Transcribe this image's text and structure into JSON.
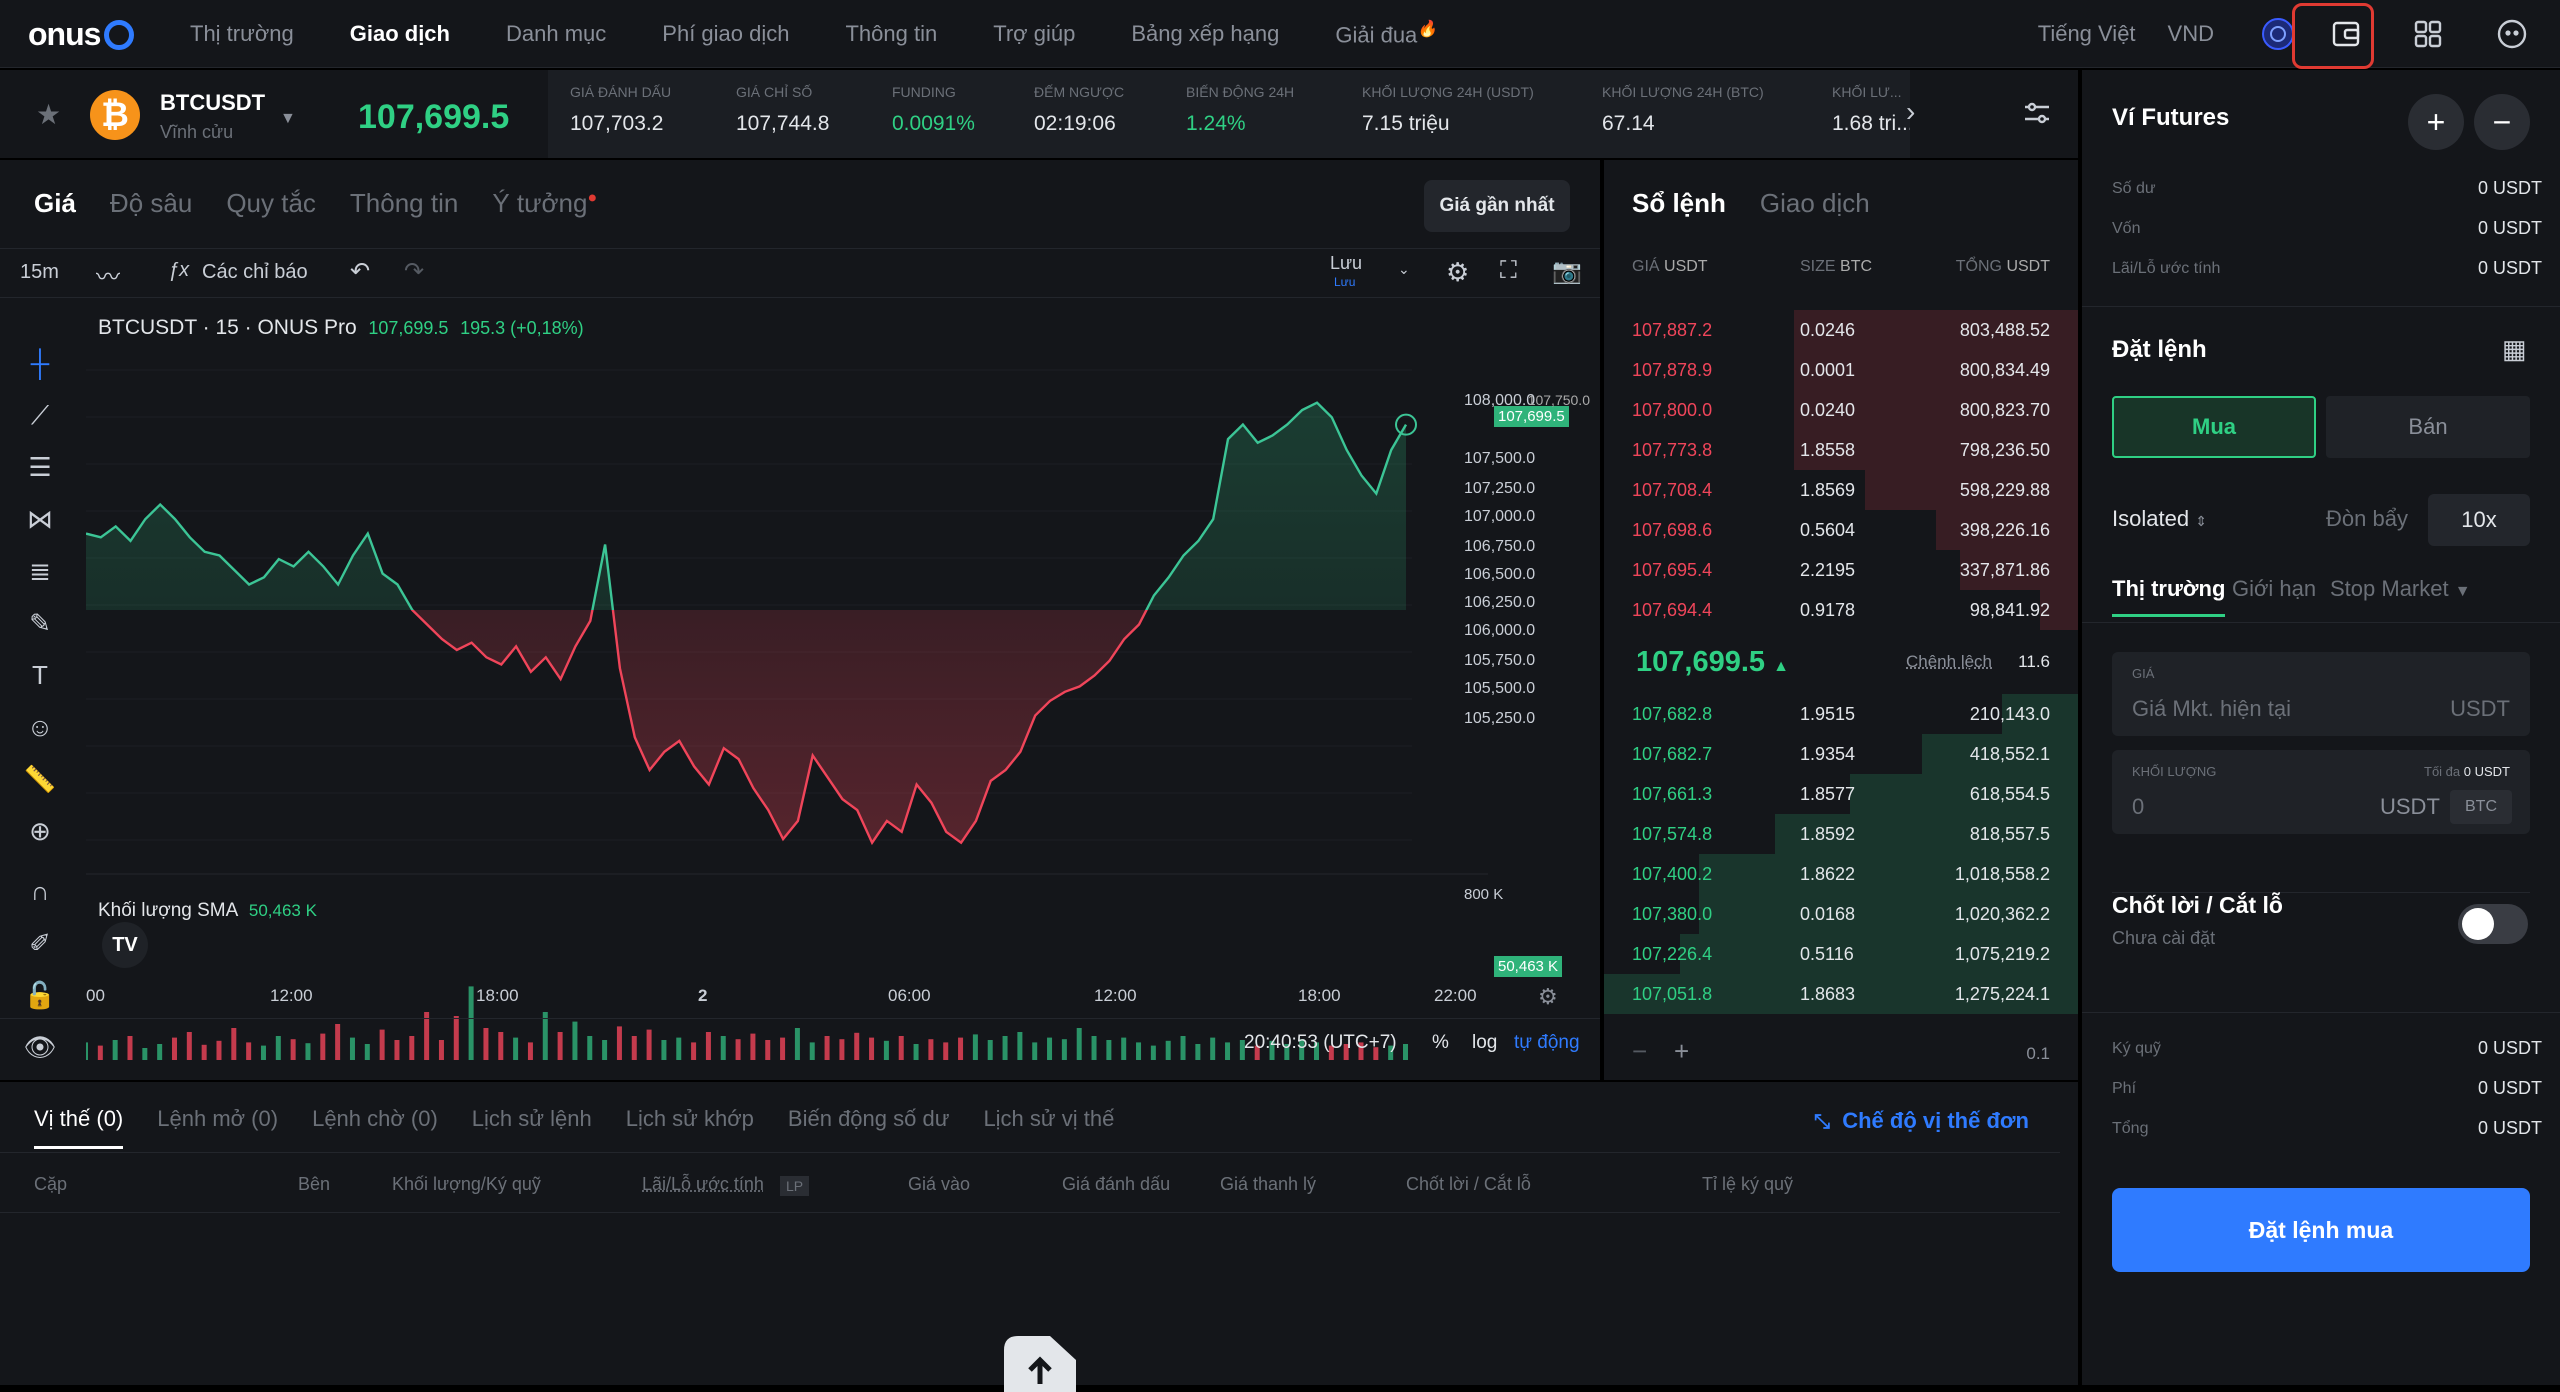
{
  "brand": {
    "name": "onus"
  },
  "nav": {
    "items": [
      "Thị trường",
      "Giao dịch",
      "Danh mục",
      "Phí giao dịch",
      "Thông tin",
      "Trợ giúp",
      "Bảng xếp hạng",
      "Giải đua"
    ],
    "active": "Giao dịch"
  },
  "topright": {
    "language": "Tiếng Việt",
    "currency": "VND"
  },
  "ticker": {
    "symbol": "BTCUSDT",
    "subtitle": "Vĩnh cửu",
    "price": "107,699.5",
    "stats": [
      {
        "label": "GIÁ ĐÁNH DẤU",
        "value": "107,703.2"
      },
      {
        "label": "GIÁ CHỈ SỐ",
        "value": "107,744.8"
      },
      {
        "label": "FUNDING",
        "value": "0.0091%"
      },
      {
        "label": "ĐẾM NGƯỢC",
        "value": "02:19:06"
      },
      {
        "label": "BIẾN ĐỘNG 24H",
        "value": "1.24%"
      },
      {
        "label": "KHỐI LƯỢNG 24H (USDT)",
        "value": "7.15 triệu"
      },
      {
        "label": "KHỐI LƯỢNG 24H (BTC)",
        "value": "67.14"
      },
      {
        "label": "KHỐI LƯ...",
        "value": "1.68 tri..."
      }
    ]
  },
  "chart_tabs": [
    "Giá",
    "Độ sâu",
    "Quy tắc",
    "Thông tin",
    "Ý tưởng"
  ],
  "nearest_btn": "Giá gần nhất",
  "toolbar": {
    "interval": "15m",
    "indicators": "Các chỉ báo",
    "save": "Lưu",
    "save_sub": "Lưu"
  },
  "chart": {
    "title": "BTCUSDT · 15 · ONUS Pro",
    "last": "107,699.5",
    "change": "195.3 (+0,18%)",
    "volume_label": "Khối lượng SMA",
    "volume_value": "50,463 K",
    "volume_tag": "50,463 K",
    "volume_axis": "800 K",
    "price_tag": "107,699.5",
    "price_axis_partial": "107,750.0",
    "y_ticks": [
      "108,000.0",
      "107,500.0",
      "107,250.0",
      "107,000.0",
      "106,750.0",
      "106,500.0",
      "106,250.0",
      "106,000.0",
      "105,750.0",
      "105,500.0",
      "105,250.0"
    ],
    "x_ticks": [
      "00",
      "12:00",
      "18:00",
      "2",
      "06:00",
      "12:00",
      "18:00",
      "22:00"
    ],
    "time": "20:40:53 (UTC+7)",
    "pct": "%",
    "log": "log",
    "auto": "tự động"
  },
  "chart_data": {
    "type": "area",
    "y_range": [
      105250,
      108000
    ],
    "baseline": 106680,
    "values": [
      107100,
      107080,
      107140,
      107060,
      107180,
      107260,
      107180,
      107080,
      107000,
      106980,
      106900,
      106820,
      106860,
      106960,
      106920,
      107000,
      106920,
      106820,
      106980,
      107100,
      106880,
      106820,
      106680,
      106600,
      106520,
      106460,
      106500,
      106420,
      106380,
      106480,
      106340,
      106420,
      106300,
      106480,
      106620,
      107040,
      106360,
      105980,
      105800,
      105900,
      105960,
      105820,
      105720,
      105920,
      105860,
      105700,
      105580,
      105420,
      105520,
      105880,
      105760,
      105640,
      105580,
      105400,
      105520,
      105460,
      105720,
      105620,
      105460,
      105400,
      105520,
      105740,
      105800,
      105900,
      106100,
      106180,
      106230,
      106260,
      106320,
      106400,
      106520,
      106600,
      106760,
      106860,
      106980,
      107060,
      107180,
      107620,
      107700,
      107600,
      107640,
      107700,
      107780,
      107820,
      107740,
      107560,
      107420,
      107320,
      107560,
      107699.5
    ],
    "volumes": [
      22,
      18,
      25,
      30,
      15,
      20,
      28,
      35,
      19,
      24,
      40,
      22,
      18,
      30,
      26,
      21,
      33,
      45,
      28,
      20,
      38,
      25,
      30,
      60,
      25,
      55,
      92,
      40,
      35,
      28,
      22,
      60,
      35,
      48,
      30,
      25,
      42,
      30,
      38,
      25,
      28,
      22,
      35,
      30,
      26,
      33,
      25,
      28,
      40,
      22,
      30,
      26,
      34,
      28,
      24,
      30,
      20,
      26,
      22,
      28,
      32,
      25,
      30,
      35,
      22,
      28,
      26,
      40,
      30,
      25,
      28,
      22,
      18,
      24,
      30,
      20,
      28,
      22,
      25,
      18,
      24,
      20,
      26,
      22,
      18,
      20,
      22,
      16,
      18,
      20
    ]
  },
  "orderbook": {
    "tabs": [
      "Sổ lệnh",
      "Giao dịch"
    ],
    "col_price": "GIÁ",
    "col_price_unit": "USDT",
    "col_size": "SIZE",
    "col_size_unit": "BTC",
    "col_total": "TỔNG",
    "col_total_unit": "USDT",
    "asks": [
      {
        "price": "107,887.2",
        "size": "0.0246",
        "total": "803,488.52",
        "depth": 0.6
      },
      {
        "price": "107,878.9",
        "size": "0.0001",
        "total": "800,834.49",
        "depth": 0.6
      },
      {
        "price": "107,800.0",
        "size": "0.0240",
        "total": "800,823.70",
        "depth": 0.6
      },
      {
        "price": "107,773.8",
        "size": "1.8558",
        "total": "798,236.50",
        "depth": 0.6
      },
      {
        "price": "107,708.4",
        "size": "1.8569",
        "total": "598,229.88",
        "depth": 0.45
      },
      {
        "price": "107,698.6",
        "size": "0.5604",
        "total": "398,226.16",
        "depth": 0.3
      },
      {
        "price": "107,695.4",
        "size": "2.2195",
        "total": "337,871.86",
        "depth": 0.25
      },
      {
        "price": "107,694.4",
        "size": "0.9178",
        "total": "98,841.92",
        "depth": 0.08
      }
    ],
    "mid": "107,699.5",
    "spread_label": "Chênh lệch",
    "spread": "11.6",
    "bids": [
      {
        "price": "107,682.8",
        "size": "1.9515",
        "total": "210,143.0",
        "depth": 0.16
      },
      {
        "price": "107,682.7",
        "size": "1.9354",
        "total": "418,552.1",
        "depth": 0.33
      },
      {
        "price": "107,661.3",
        "size": "1.8577",
        "total": "618,554.5",
        "depth": 0.48
      },
      {
        "price": "107,574.8",
        "size": "1.8592",
        "total": "818,557.5",
        "depth": 0.64
      },
      {
        "price": "107,400.2",
        "size": "1.8622",
        "total": "1,018,558.2",
        "depth": 0.8
      },
      {
        "price": "107,380.0",
        "size": "0.0168",
        "total": "1,020,362.2",
        "depth": 0.8
      },
      {
        "price": "107,226.4",
        "size": "0.5116",
        "total": "1,075,219.2",
        "depth": 0.84
      },
      {
        "price": "107,051.8",
        "size": "1.8683",
        "total": "1,275,224.1",
        "depth": 1.0
      }
    ],
    "step": "0.1"
  },
  "bottom": {
    "tabs": [
      "Vị thế (0)",
      "Lệnh mở (0)",
      "Lệnh chờ (0)",
      "Lịch sử lệnh",
      "Lịch sử khớp",
      "Biến động số dư",
      "Lịch sử vị thế"
    ],
    "mode": "Chế độ vị thế đơn",
    "columns": [
      "Cặp",
      "Bên",
      "Khối lượng/Ký quỹ",
      "Lãi/Lỗ ước tính",
      "Giá vào",
      "Giá đánh dấu",
      "Giá thanh lý",
      "Chốt lời / Cắt lỗ",
      "Tỉ lệ ký quỹ"
    ],
    "lp": "LP"
  },
  "wallet": {
    "title": "Ví Futures",
    "rows": [
      {
        "label": "Số dư",
        "value": "0 USDT"
      },
      {
        "label": "Vốn",
        "value": "0 USDT"
      },
      {
        "label": "Lãi/Lỗ ước tính",
        "value": "0 USDT"
      }
    ]
  },
  "order": {
    "title": "Đặt lệnh",
    "buy": "Mua",
    "sell": "Bán",
    "margin_mode": "Isolated",
    "leverage_label": "Đòn bẩy",
    "leverage": "10x",
    "types": [
      "Thị trường",
      "Giới hạn",
      "Stop Market"
    ],
    "price_label": "GIÁ",
    "price_placeholder": "Giá Mkt. hiện tại",
    "price_unit": "USDT",
    "qty_label": "KHỐI LƯỢNG",
    "qty_max_label": "Tối đa",
    "qty_max": "0 USDT",
    "qty_value": "0",
    "qty_unit": "USDT",
    "qty_unit2": "BTC",
    "tpsl": "Chốt lời / Cắt lỗ",
    "tpsl_status": "Chưa cài đặt",
    "summary": [
      {
        "label": "Ký quỹ",
        "value": "0 USDT"
      },
      {
        "label": "Phí",
        "value": "0 USDT"
      },
      {
        "label": "Tổng",
        "value": "0 USDT"
      }
    ],
    "submit": "Đặt lệnh mua"
  },
  "colors": {
    "green": "#2fd084",
    "red": "#f0455a",
    "accent": "#2f7bff",
    "highlight": "#e03a32"
  }
}
